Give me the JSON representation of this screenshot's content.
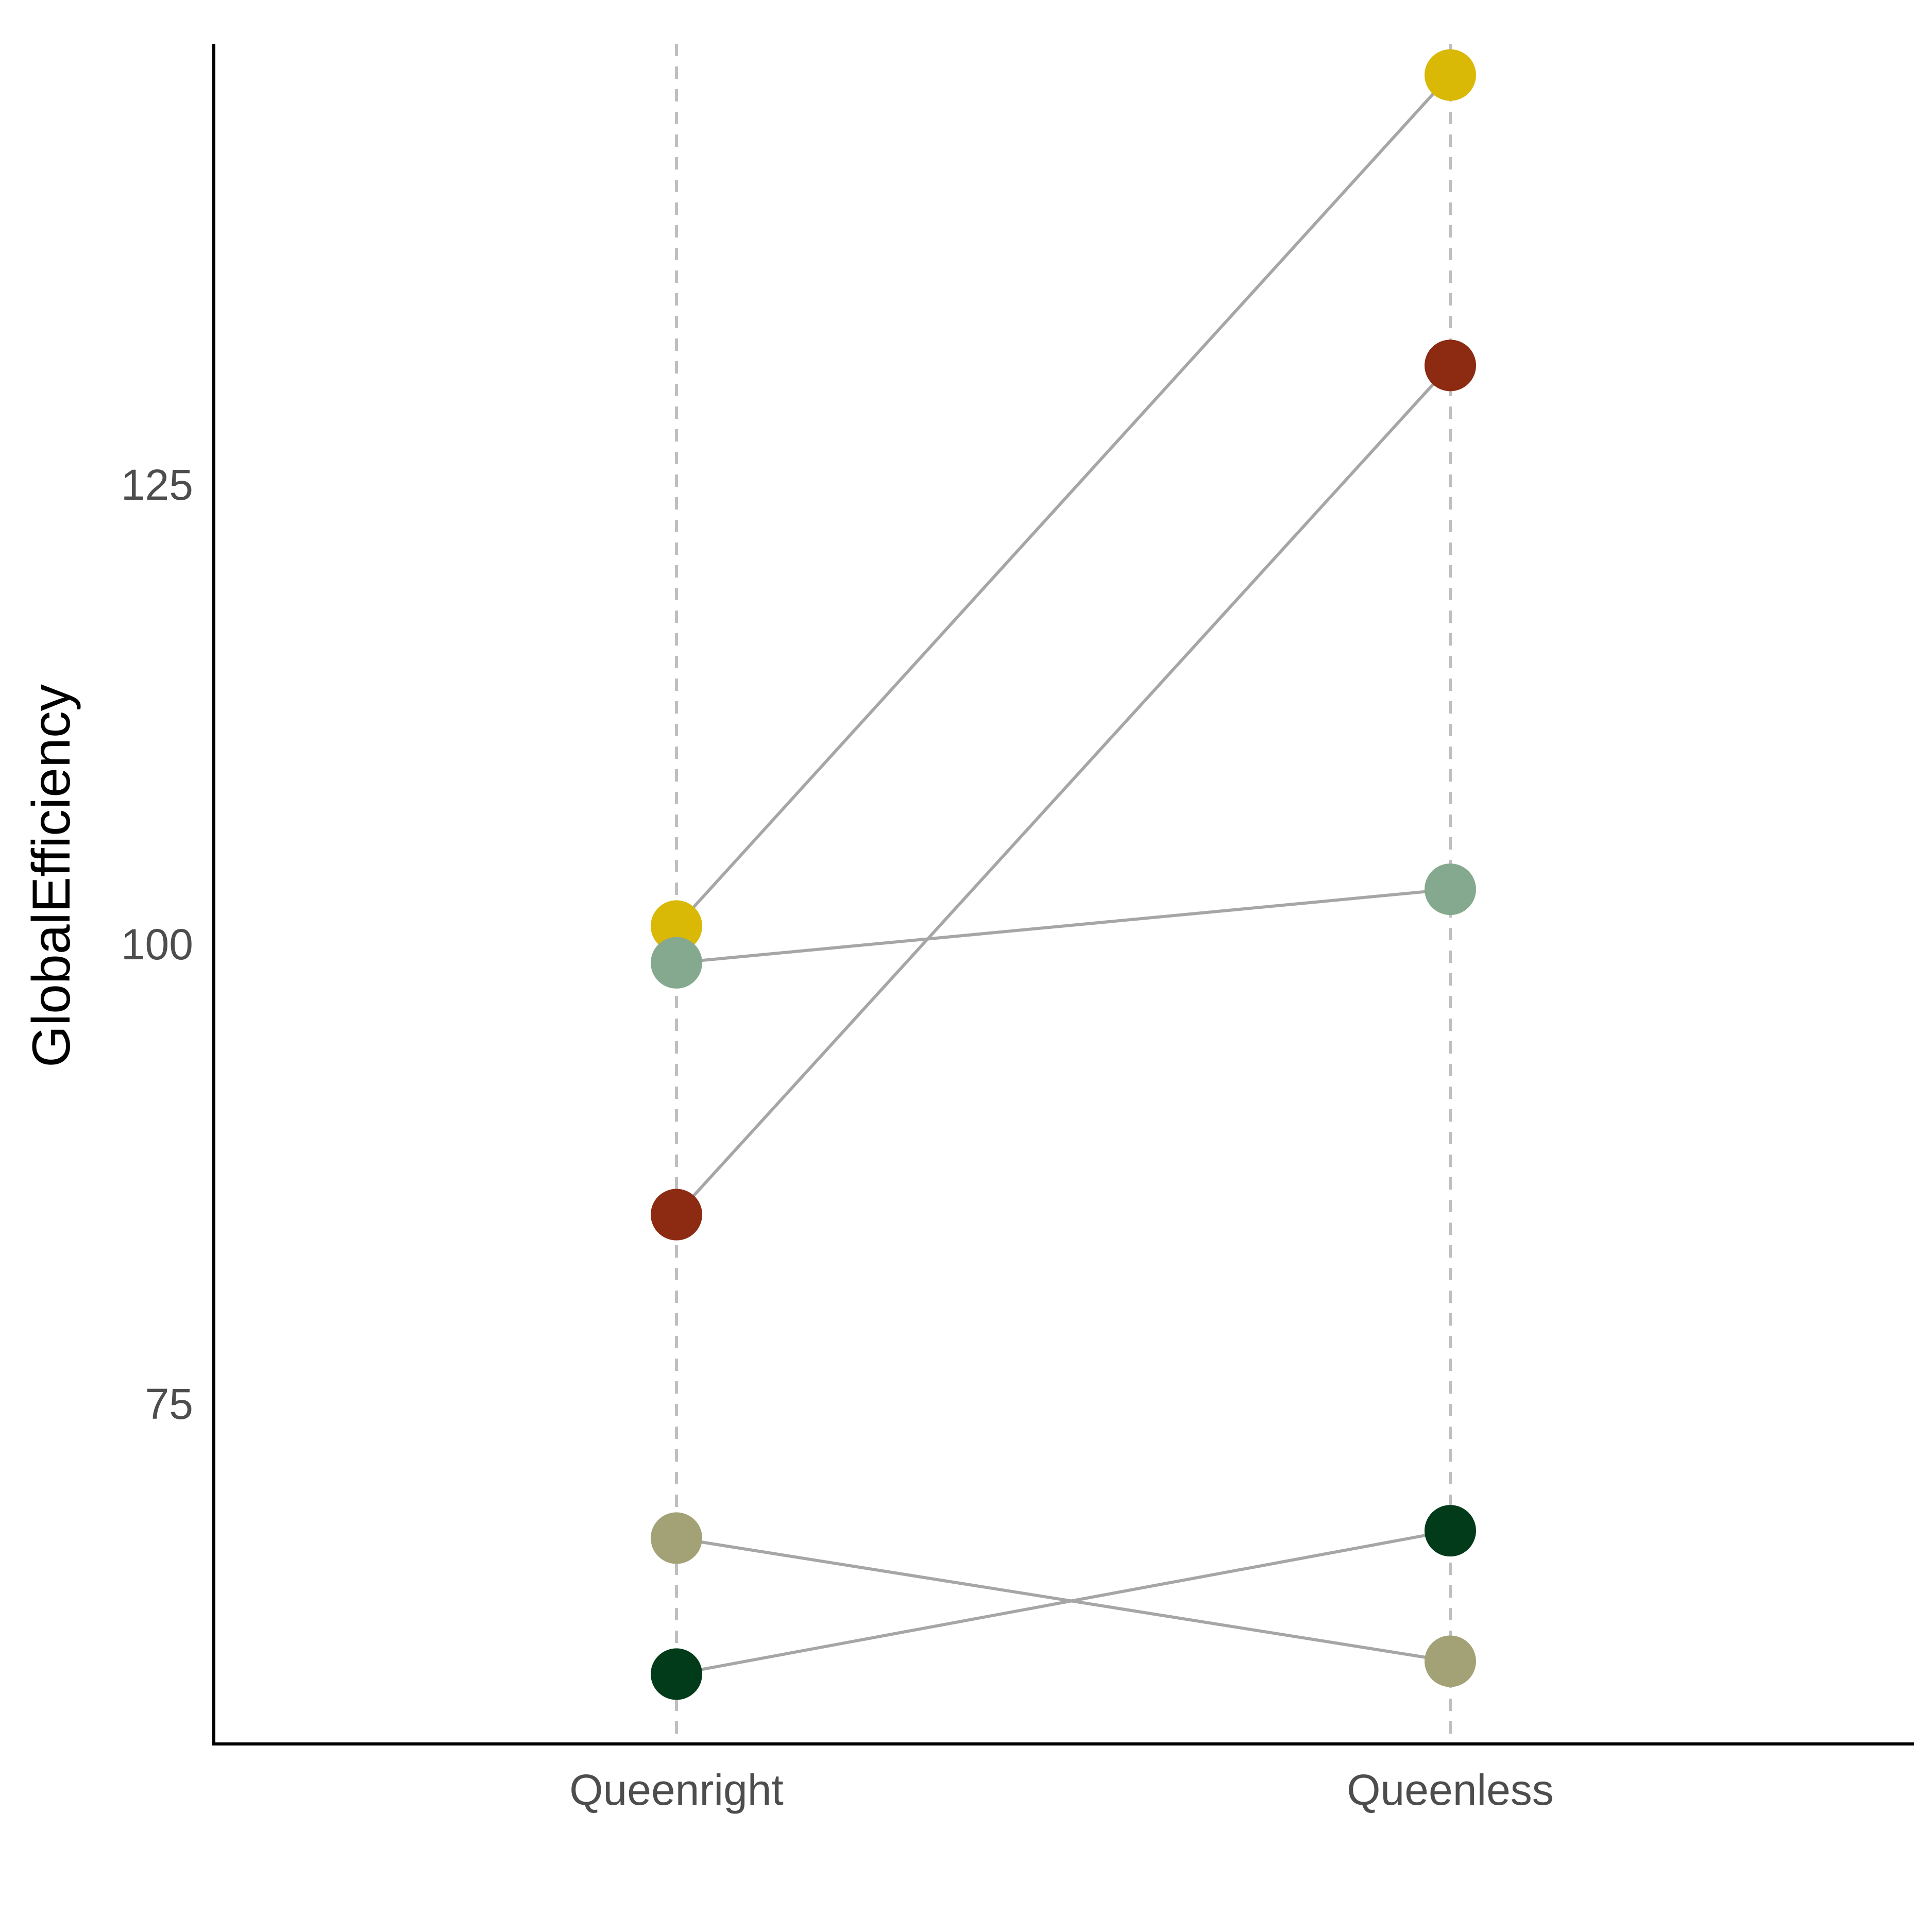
{
  "chart_data": {
    "type": "line",
    "title": "",
    "xlabel": "",
    "ylabel": "GlobalEfficiency",
    "categories": [
      "Queenright",
      "Queenless"
    ],
    "ylim": [
      56.5,
      149
    ],
    "yticks": [
      75,
      100,
      125
    ],
    "grid": false,
    "legend": "none",
    "series": [
      {
        "color": "#D9B806",
        "values": [
          101,
          147.3
        ]
      },
      {
        "color": "#8C2A12",
        "values": [
          85.3,
          131.5
        ]
      },
      {
        "color": "#84A98F",
        "values": [
          99,
          103
        ]
      },
      {
        "color": "#A2A276",
        "values": [
          67.7,
          61
        ]
      },
      {
        "color": "#023B1A",
        "values": [
          60.3,
          68.1
        ]
      }
    ]
  }
}
